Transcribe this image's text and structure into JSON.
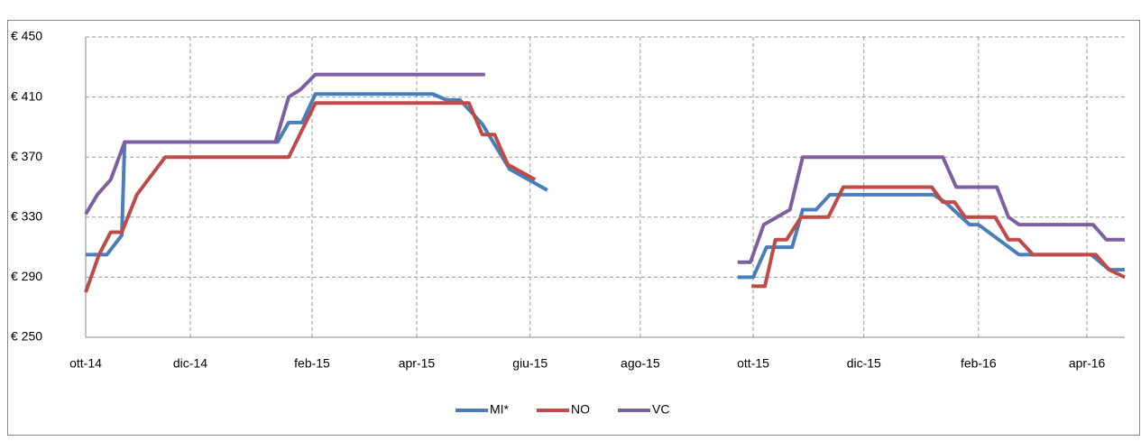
{
  "chart_data": {
    "type": "line",
    "xlim": [
      0,
      18.68
    ],
    "xticks": [
      {
        "value": 0,
        "label": "ott-14"
      },
      {
        "value": 1.88,
        "label": "dic-14"
      },
      {
        "value": 4.07,
        "label": "feb-15"
      },
      {
        "value": 5.95,
        "label": "apr-15"
      },
      {
        "value": 7.99,
        "label": "giu-15"
      },
      {
        "value": 9.97,
        "label": "ago-15"
      },
      {
        "value": 12.0,
        "label": "ott-15"
      },
      {
        "value": 13.99,
        "label": "dic-15"
      },
      {
        "value": 16.05,
        "label": "feb-16"
      },
      {
        "value": 18.0,
        "label": "apr-16"
      }
    ],
    "ylim": [
      250,
      450
    ],
    "yticks": [
      {
        "value": 250,
        "label": "€ 250"
      },
      {
        "value": 290,
        "label": "€ 290"
      },
      {
        "value": 330,
        "label": "€ 330"
      },
      {
        "value": 370,
        "label": "€ 370"
      },
      {
        "value": 410,
        "label": "€ 410"
      },
      {
        "value": 450,
        "label": "€ 450"
      }
    ],
    "grid": true,
    "legend": "bottom",
    "series": [
      {
        "name": "MI*",
        "color": "#4a7ebb",
        "x": [
          0,
          0.38,
          0.65,
          0.7,
          3.45,
          3.65,
          3.89,
          4.13,
          6.24,
          6.49,
          6.73,
          7.13,
          7.62,
          8.3,
          10,
          11.72,
          12.0,
          12.24,
          12.7,
          12.89,
          13.13,
          13.38,
          15.24,
          15.45,
          15.89,
          16.05,
          16.78,
          18.08,
          18.4,
          18.68
        ],
        "values": [
          305,
          305,
          318,
          380,
          380,
          393,
          393,
          412,
          412,
          408,
          408,
          392,
          362,
          348,
          null,
          290,
          290,
          310,
          310,
          335,
          335,
          345,
          345,
          340,
          325,
          325,
          305,
          305,
          295,
          295
        ]
      },
      {
        "name": "NO",
        "color": "#be4b48",
        "x": [
          0,
          0.24,
          0.45,
          0.65,
          0.92,
          1.43,
          3.65,
          4.13,
          6.89,
          7.13,
          7.35,
          7.59,
          8.08,
          10,
          11.97,
          12.21,
          12.4,
          12.6,
          12.86,
          13.35,
          13.62,
          15.21,
          15.41,
          15.62,
          15.81,
          16.35,
          16.59,
          16.78,
          17.03,
          18.16,
          18.4,
          18.68
        ],
        "values": [
          280,
          305,
          320,
          320,
          345,
          370,
          370,
          406,
          406,
          385,
          385,
          365,
          355,
          null,
          284,
          284,
          315,
          315,
          330,
          330,
          350,
          350,
          340,
          340,
          330,
          330,
          315,
          315,
          305,
          305,
          295,
          290
        ]
      },
      {
        "name": "VC",
        "color": "#7d60a0",
        "x": [
          0,
          0.21,
          0.45,
          0.7,
          3.41,
          3.65,
          3.86,
          4.13,
          7.18,
          10,
          11.72,
          11.95,
          12.19,
          12.66,
          12.89,
          15.41,
          15.65,
          16.38,
          16.59,
          16.78,
          18.11,
          18.35,
          18.68
        ],
        "values": [
          332,
          345,
          355,
          380,
          380,
          410,
          415,
          425,
          425,
          null,
          300,
          300,
          325,
          335,
          370,
          370,
          350,
          350,
          330,
          325,
          325,
          315,
          315
        ]
      }
    ]
  }
}
